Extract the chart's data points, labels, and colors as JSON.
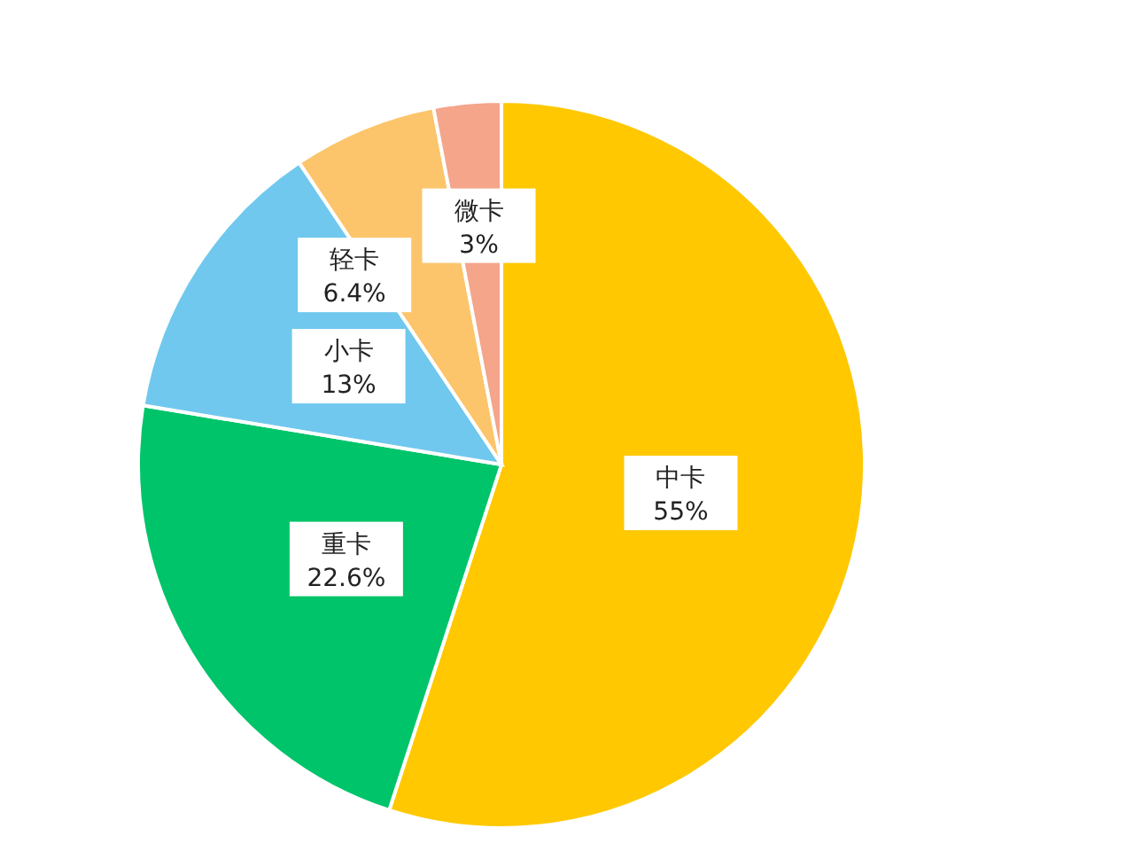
{
  "chart_data": {
    "type": "pie",
    "categories": [
      "中卡",
      "重卡",
      "小卡",
      "轻卡",
      "微卡"
    ],
    "values": [
      55,
      22.6,
      13,
      6.4,
      3
    ],
    "value_labels": [
      "55%",
      "22.6%",
      "13%",
      "6.4%",
      "3%"
    ],
    "colors": [
      "#ffc800",
      "#00c46a",
      "#70c8ee",
      "#fcc56b",
      "#f4a58a"
    ]
  }
}
